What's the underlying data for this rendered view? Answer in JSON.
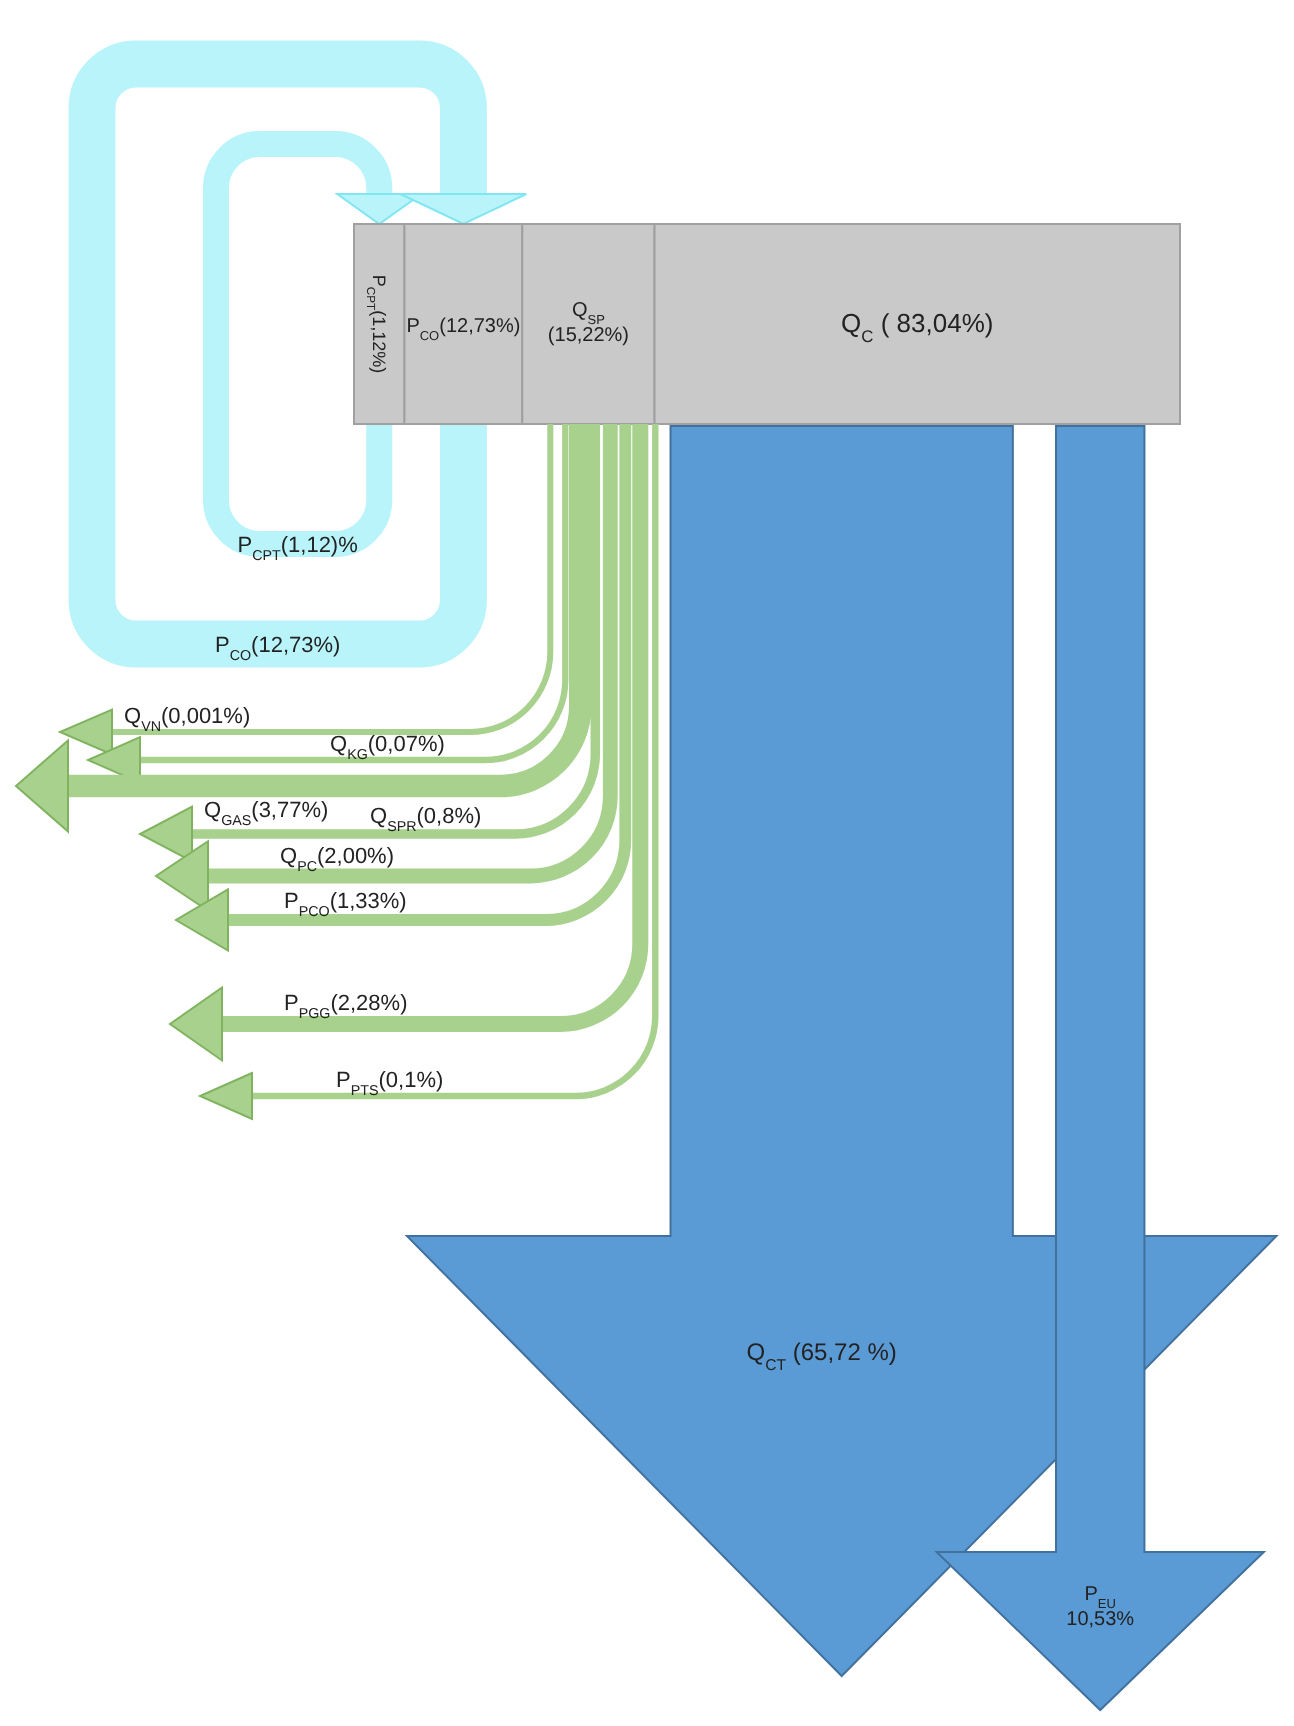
{
  "chart_data": {
    "type": "other",
    "categories": [
      "P$_{CPT}$",
      "P$_{CO}$",
      "Q$_{SP}$",
      "Q$_{C}$",
      "P$_{CPT}$",
      "P$_{CO}$",
      "Q$_{VN}$",
      "Q$_{KG}$",
      "Q$_{GAS}$",
      "Q$_{SPR}$",
      "Q$_{PC}$",
      "P$_{PCO}$",
      "P$_{PGG}$",
      "P$_{PTS}$",
      "Q$_{CT}$",
      "P$_{EU}$"
    ],
    "values": [
      1.12,
      12.73,
      15.22,
      83.04,
      1.12,
      12.73,
      0.001,
      0.07,
      3.77,
      0.8,
      2.0,
      1.33,
      2.28,
      0.1,
      65.72,
      10.53
    ],
    "value_labels": [
      "(1,12%)",
      "(12,73%)",
      "\n(15,22%)",
      " ( 83,04%)",
      "(1,12)%",
      "(12,73%)",
      "(0,001%)",
      "(0,07%)",
      "(3,77%)",
      "(0,8%)",
      "(2,00%)",
      "(1,33%)",
      "(2,28%)",
      "(0,1%)",
      " (65,72 %)",
      "\n10,53%"
    ],
    "colors": [
      "#c9c9c9",
      "#c9c9c9",
      "#c9c9c9",
      "#c9c9c9",
      "#b8f4fa",
      "#b8f4fa",
      "#a9d18e",
      "#a9d18e",
      "#a9d18e",
      "#a9d18e",
      "#a9d18e",
      "#a9d18e",
      "#a9d18e",
      "#a9d18e",
      "#5b9bd5",
      "#5b9bd5"
    ]
  }
}
